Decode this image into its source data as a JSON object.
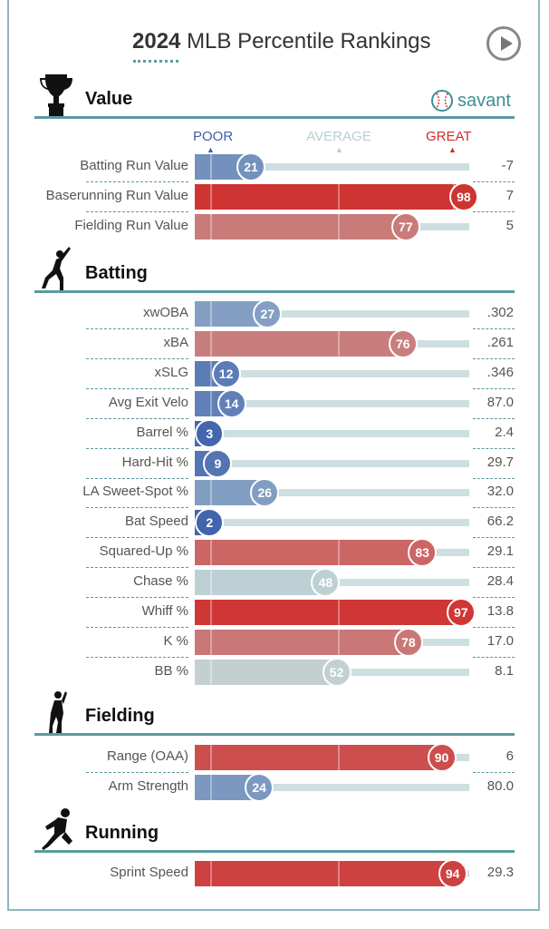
{
  "header": {
    "year": "2024",
    "title": "MLB Percentile Rankings",
    "brand": "savant"
  },
  "scale": {
    "poor": "POOR",
    "average": "AVERAGE",
    "great": "GREAT"
  },
  "colors": {
    "poor": "#3c5fab",
    "average": "#c2d6d7",
    "great": "#cf2d2b",
    "accent": "#5a9aa0"
  },
  "chart_data": {
    "type": "bar",
    "title": "2024 MLB Percentile Rankings",
    "xlim": [
      0,
      100
    ],
    "sections": [
      {
        "name": "Value",
        "icon": "trophy-icon",
        "rows": [
          {
            "label": "Batting Run Value",
            "percentile": 21,
            "value": "-7"
          },
          {
            "label": "Baserunning Run Value",
            "percentile": 98,
            "value": "7"
          },
          {
            "label": "Fielding Run Value",
            "percentile": 77,
            "value": "5"
          }
        ]
      },
      {
        "name": "Batting",
        "icon": "batter-icon",
        "rows": [
          {
            "label": "xwOBA",
            "percentile": 27,
            "value": ".302"
          },
          {
            "label": "xBA",
            "percentile": 76,
            "value": ".261"
          },
          {
            "label": "xSLG",
            "percentile": 12,
            "value": ".346"
          },
          {
            "label": "Avg Exit Velo",
            "percentile": 14,
            "value": "87.0"
          },
          {
            "label": "Barrel %",
            "percentile": 3,
            "value": "2.4"
          },
          {
            "label": "Hard-Hit %",
            "percentile": 9,
            "value": "29.7"
          },
          {
            "label": "LA Sweet-Spot %",
            "percentile": 26,
            "value": "32.0"
          },
          {
            "label": "Bat Speed",
            "percentile": 2,
            "value": "66.2"
          },
          {
            "label": "Squared-Up %",
            "percentile": 83,
            "value": "29.1"
          },
          {
            "label": "Chase %",
            "percentile": 48,
            "value": "28.4"
          },
          {
            "label": "Whiff %",
            "percentile": 97,
            "value": "13.8"
          },
          {
            "label": "K %",
            "percentile": 78,
            "value": "17.0"
          },
          {
            "label": "BB %",
            "percentile": 52,
            "value": "8.1"
          }
        ]
      },
      {
        "name": "Fielding",
        "icon": "fielder-icon",
        "rows": [
          {
            "label": "Range (OAA)",
            "percentile": 90,
            "value": "6"
          },
          {
            "label": "Arm Strength",
            "percentile": 24,
            "value": "80.0"
          }
        ]
      },
      {
        "name": "Running",
        "icon": "runner-icon",
        "rows": [
          {
            "label": "Sprint Speed",
            "percentile": 94,
            "value": "29.3"
          }
        ]
      }
    ]
  }
}
